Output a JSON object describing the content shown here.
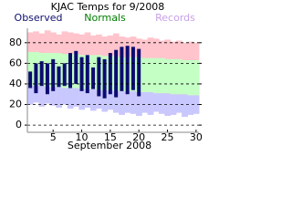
{
  "chart_data": {
    "type": "range",
    "title": "KJAC Temps for 9/2008",
    "x_label": "September 2008",
    "x": [
      1,
      2,
      3,
      4,
      5,
      6,
      7,
      8,
      9,
      10,
      11,
      12,
      13,
      14,
      15,
      16,
      17,
      18,
      19,
      20,
      21,
      22,
      23,
      24,
      25,
      26,
      27,
      28,
      29,
      30
    ],
    "xlim": [
      0.5,
      30.5
    ],
    "xticks": [
      5,
      10,
      15,
      20,
      25,
      30
    ],
    "ylim": [
      -7,
      94
    ],
    "yticks": [
      0,
      20,
      40,
      60,
      80
    ],
    "grid": true,
    "series": [
      {
        "name": "Records",
        "color": "#ffc4cc",
        "low_color": "#c8c8ff",
        "legend_color": "#c8a0e8",
        "high": [
          90,
          91,
          89,
          92,
          90,
          88,
          91,
          90,
          89,
          88,
          90,
          87,
          88,
          86,
          87,
          89,
          86,
          85,
          86,
          84,
          83,
          85,
          84,
          82,
          83,
          81,
          82,
          80,
          81,
          80
        ],
        "low": [
          20,
          22,
          18,
          21,
          19,
          17,
          20,
          16,
          18,
          15,
          17,
          14,
          16,
          13,
          15,
          12,
          10,
          12,
          11,
          9,
          12,
          10,
          13,
          11,
          9,
          10,
          12,
          8,
          10,
          11
        ]
      },
      {
        "name": "Normals",
        "color": "#c4ffc4",
        "legend_color": "#008000",
        "high": [
          71,
          71,
          70,
          70,
          70,
          70,
          69,
          69,
          69,
          68,
          68,
          68,
          68,
          67,
          67,
          67,
          66,
          66,
          66,
          66,
          65,
          65,
          65,
          65,
          64,
          64,
          64,
          63,
          63,
          63
        ],
        "low": [
          38,
          38,
          38,
          37,
          37,
          37,
          36,
          36,
          36,
          35,
          35,
          35,
          34,
          34,
          34,
          33,
          33,
          33,
          33,
          32,
          32,
          32,
          31,
          31,
          31,
          30,
          30,
          30,
          29,
          29
        ]
      },
      {
        "name": "Observed",
        "color": "#0c0c70",
        "legend_color": "#101070",
        "high": [
          52,
          60,
          62,
          60,
          64,
          57,
          60,
          70,
          72,
          66,
          68,
          56,
          66,
          64,
          70,
          73,
          76,
          77,
          76,
          74,
          null,
          null,
          null,
          null,
          null,
          null,
          null,
          null,
          null,
          null
        ],
        "low": [
          36,
          31,
          38,
          30,
          33,
          37,
          38,
          36,
          40,
          33,
          31,
          35,
          28,
          26,
          30,
          27,
          33,
          30,
          34,
          28,
          null,
          null,
          null,
          null,
          null,
          null,
          null,
          null,
          null,
          null
        ]
      }
    ]
  }
}
